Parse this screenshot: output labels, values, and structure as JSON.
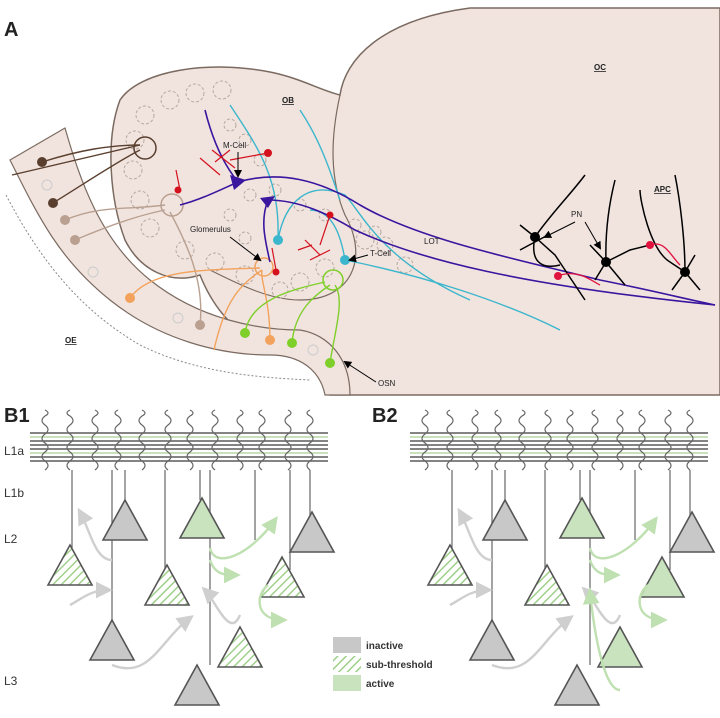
{
  "panels": {
    "a": "A",
    "b1": "B1",
    "b2": "B2"
  },
  "regions": {
    "oc": "OC",
    "ob": "OB",
    "apc": "APC",
    "oe": "OE"
  },
  "labels": {
    "m_cell": "M-Cell",
    "t_cell": "T-Cell",
    "glomerulus": "Glomerulus",
    "lot": "LOT",
    "pn": "PN",
    "osn": "OSN"
  },
  "layers": {
    "l1a": "L1a",
    "l1b": "L1b",
    "l2": "L2",
    "l3": "L3"
  },
  "legend": [
    {
      "label": "inactive",
      "color": "#c8c8c8"
    },
    {
      "label": "sub-threshold",
      "color": "#c9e3bf"
    },
    {
      "label": "active",
      "color": "#c9e3bf"
    }
  ],
  "colors": {
    "tissue": "#f1e4df",
    "outline": "#7a6a60",
    "mitral": "#3a159e",
    "tufted": "#3cb6cc",
    "red": "#d4121e",
    "pink": "#e0123e",
    "orange": "#f2a25c",
    "green": "#7fcf2a",
    "light_brown": "#b9a090",
    "dark_brown": "#5a3f2e",
    "inactive": "#c8c8c8",
    "active": "#c9e3bf"
  }
}
